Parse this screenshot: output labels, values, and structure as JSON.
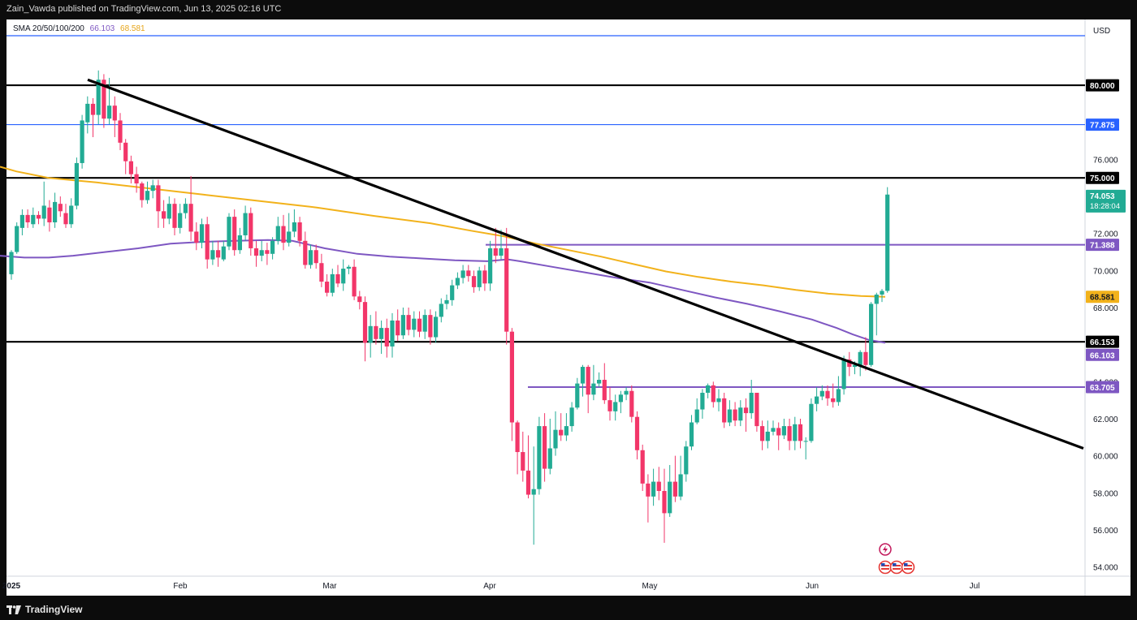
{
  "header": {
    "publish_line": "Zain_Vawda published on TradingView.com, Jun 13, 2025 02:16 UTC"
  },
  "legend": {
    "label": "SMA 20/50/100/200",
    "value_1": "66.103",
    "value_2": "68.581"
  },
  "price_axis": {
    "currency": "USD",
    "ticks": [
      "80.000",
      "76.000",
      "72.000",
      "70.000",
      "68.000",
      "64.000",
      "62.000",
      "60.000",
      "58.000",
      "56.000",
      "54.000"
    ]
  },
  "time_axis": {
    "labels": [
      "2025",
      "Feb",
      "Mar",
      "Apr",
      "May",
      "Jun",
      "Jul"
    ]
  },
  "footer": {
    "brand": "TradingView"
  },
  "colors": {
    "up": "#22ab94",
    "down": "#f23669",
    "sma_purple": "#7e57c2",
    "sma_yellow": "#f2b21b",
    "blue_line": "#2962ff",
    "black_line": "#000000"
  },
  "chart_data": {
    "type": "candlestick",
    "symbol_price_label": "74.053",
    "countdown": "18:28:04",
    "y_range": [
      53.5,
      82.5
    ],
    "horizontal_levels": [
      {
        "value": 80.0,
        "label": "80.000",
        "color": "#000000"
      },
      {
        "value": 77.875,
        "label": "77.875",
        "color": "#2962ff"
      },
      {
        "value": 75.0,
        "label": "75.000",
        "color": "#000000"
      },
      {
        "value": 71.388,
        "label": "71.388",
        "color": "#7e57c2"
      },
      {
        "value": 66.153,
        "label": "66.153",
        "color": "#000000"
      },
      {
        "value": 63.705,
        "label": "63.705",
        "color": "#7e57c2"
      }
    ],
    "sma_labels": [
      {
        "value": 68.581,
        "label": "68.581",
        "color": "#f2b21b"
      },
      {
        "value": 66.103,
        "label": "66.103",
        "color": "#7e57c2"
      }
    ],
    "trendline": {
      "start": [
        80.3,
        "Jan 14"
      ],
      "end": [
        60.4,
        "Jul 12"
      ]
    },
    "candles": [
      [
        69.8,
        71.0,
        69.5,
        71.1
      ],
      [
        71.0,
        72.4,
        70.9,
        72.6
      ],
      [
        72.3,
        73.0,
        71.9,
        73.3
      ],
      [
        73.0,
        72.6,
        72.3,
        73.3
      ],
      [
        72.5,
        73.0,
        72.3,
        73.4
      ],
      [
        73.0,
        72.8,
        72.5,
        73.2
      ],
      [
        72.8,
        73.5,
        72.4,
        74.8
      ],
      [
        73.4,
        72.6,
        72.1,
        73.8
      ],
      [
        72.6,
        73.7,
        72.3,
        74.2
      ],
      [
        73.6,
        73.2,
        72.9,
        74.0
      ],
      [
        73.1,
        72.5,
        72.3,
        73.6
      ],
      [
        72.5,
        73.5,
        72.3,
        73.9
      ],
      [
        73.5,
        75.8,
        73.3,
        76.1
      ],
      [
        75.8,
        78.1,
        75.5,
        78.4
      ],
      [
        78.0,
        79.0,
        77.4,
        79.4
      ],
      [
        79.0,
        78.4,
        77.2,
        79.3
      ],
      [
        78.4,
        80.3,
        77.9,
        80.8
      ],
      [
        80.3,
        78.2,
        77.7,
        80.6
      ],
      [
        78.2,
        78.9,
        77.9,
        80.4
      ],
      [
        78.9,
        78.1,
        77.2,
        79.4
      ],
      [
        78.1,
        76.9,
        76.5,
        78.5
      ],
      [
        76.9,
        75.9,
        75.2,
        77.1
      ],
      [
        75.9,
        75.2,
        74.7,
        76.2
      ],
      [
        75.2,
        74.7,
        74.2,
        75.6
      ],
      [
        74.7,
        73.8,
        73.4,
        74.8
      ],
      [
        73.8,
        74.3,
        73.6,
        74.8
      ],
      [
        74.3,
        74.6,
        73.9,
        74.9
      ],
      [
        74.6,
        73.2,
        72.3,
        74.9
      ],
      [
        73.2,
        72.8,
        72.3,
        73.8
      ],
      [
        72.8,
        73.6,
        72.5,
        74.0
      ],
      [
        73.6,
        72.3,
        71.9,
        73.9
      ],
      [
        72.3,
        73.1,
        72.0,
        73.6
      ],
      [
        73.1,
        73.6,
        72.8,
        73.9
      ],
      [
        73.6,
        72.1,
        71.6,
        75.1
      ],
      [
        72.1,
        71.5,
        71.1,
        72.6
      ],
      [
        71.5,
        72.5,
        71.2,
        72.8
      ],
      [
        72.5,
        70.6,
        70.1,
        72.9
      ],
      [
        70.6,
        71.1,
        70.3,
        71.6
      ],
      [
        71.1,
        70.7,
        70.2,
        71.6
      ],
      [
        70.6,
        71.3,
        70.5,
        71.6
      ],
      [
        71.3,
        72.9,
        71.1,
        73.1
      ],
      [
        72.9,
        71.1,
        70.8,
        73.3
      ],
      [
        71.1,
        71.9,
        70.9,
        72.3
      ],
      [
        71.9,
        73.1,
        71.6,
        73.5
      ],
      [
        73.1,
        71.2,
        70.8,
        73.4
      ],
      [
        71.2,
        70.8,
        70.2,
        71.6
      ],
      [
        70.8,
        71.1,
        70.5,
        71.6
      ],
      [
        71.1,
        70.9,
        70.3,
        71.5
      ],
      [
        70.9,
        71.6,
        70.6,
        71.8
      ],
      [
        71.6,
        72.4,
        71.4,
        72.9
      ],
      [
        72.4,
        71.5,
        71.1,
        73.0
      ],
      [
        71.5,
        72.1,
        71.3,
        73.1
      ],
      [
        72.1,
        72.6,
        71.8,
        73.3
      ],
      [
        72.6,
        71.6,
        71.3,
        72.9
      ],
      [
        71.6,
        70.3,
        70.1,
        72.1
      ],
      [
        70.3,
        71.1,
        70.1,
        71.4
      ],
      [
        71.1,
        70.4,
        70.1,
        71.4
      ],
      [
        70.4,
        69.4,
        69.1,
        70.9
      ],
      [
        69.4,
        68.8,
        68.6,
        69.8
      ],
      [
        68.8,
        69.8,
        68.6,
        70.1
      ],
      [
        69.8,
        69.3,
        69.1,
        70.3
      ],
      [
        69.3,
        70.1,
        68.9,
        70.6
      ],
      [
        70.1,
        70.2,
        69.8,
        70.3
      ],
      [
        70.2,
        68.6,
        68.4,
        70.6
      ],
      [
        68.6,
        68.3,
        67.9,
        68.9
      ],
      [
        68.3,
        66.1,
        65.1,
        68.6
      ],
      [
        66.1,
        67.0,
        65.3,
        67.6
      ],
      [
        67.0,
        66.3,
        66.0,
        67.8
      ],
      [
        66.3,
        66.9,
        65.5,
        67.3
      ],
      [
        66.9,
        65.9,
        65.3,
        67.4
      ],
      [
        65.9,
        67.3,
        65.3,
        67.7
      ],
      [
        67.3,
        66.5,
        66.2,
        67.9
      ],
      [
        66.5,
        67.6,
        66.3,
        68.0
      ],
      [
        67.6,
        66.8,
        66.5,
        68.0
      ],
      [
        66.8,
        67.4,
        66.4,
        67.8
      ],
      [
        67.4,
        66.7,
        66.4,
        67.8
      ],
      [
        66.7,
        67.6,
        66.3,
        67.9
      ],
      [
        67.6,
        66.4,
        66.0,
        67.9
      ],
      [
        66.4,
        67.5,
        66.1,
        67.8
      ],
      [
        67.5,
        68.2,
        67.2,
        68.5
      ],
      [
        68.2,
        68.4,
        67.9,
        68.7
      ],
      [
        68.4,
        69.2,
        68.1,
        69.5
      ],
      [
        69.2,
        69.6,
        69.0,
        69.9
      ],
      [
        69.6,
        70.0,
        69.3,
        70.3
      ],
      [
        70.0,
        69.7,
        69.4,
        70.3
      ],
      [
        69.7,
        69.1,
        68.8,
        70.0
      ],
      [
        69.1,
        70.0,
        68.9,
        70.2
      ],
      [
        70.0,
        69.3,
        68.9,
        70.3
      ],
      [
        69.3,
        71.2,
        68.9,
        71.6
      ],
      [
        71.2,
        70.8,
        70.4,
        72.3
      ],
      [
        70.8,
        71.2,
        70.6,
        72.2
      ],
      [
        71.2,
        66.7,
        66.0,
        72.3
      ],
      [
        66.7,
        61.8,
        60.8,
        66.9
      ],
      [
        61.8,
        60.2,
        59.0,
        61.9
      ],
      [
        60.2,
        59.2,
        58.6,
        61.3
      ],
      [
        59.2,
        57.9,
        57.7,
        61.1
      ],
      [
        57.9,
        58.2,
        55.2,
        60.5
      ],
      [
        58.2,
        61.6,
        57.9,
        62.1
      ],
      [
        61.6,
        59.3,
        58.6,
        62.3
      ],
      [
        59.3,
        60.4,
        59.0,
        62.0
      ],
      [
        60.4,
        61.4,
        60.0,
        62.4
      ],
      [
        61.4,
        61.1,
        60.8,
        62.3
      ],
      [
        61.1,
        61.6,
        60.8,
        62.3
      ],
      [
        61.6,
        62.6,
        61.3,
        62.9
      ],
      [
        62.6,
        63.9,
        62.5,
        64.2
      ],
      [
        63.9,
        64.8,
        63.2,
        64.9
      ],
      [
        64.8,
        63.3,
        62.3,
        64.9
      ],
      [
        63.3,
        63.9,
        63.0,
        64.9
      ],
      [
        63.9,
        64.1,
        63.7,
        64.5
      ],
      [
        64.1,
        63.0,
        62.8,
        65.0
      ],
      [
        63.0,
        62.4,
        61.9,
        63.7
      ],
      [
        62.4,
        62.9,
        61.9,
        63.3
      ],
      [
        62.9,
        63.3,
        62.3,
        63.5
      ],
      [
        63.3,
        63.5,
        63.0,
        63.7
      ],
      [
        63.5,
        62.1,
        61.8,
        63.8
      ],
      [
        62.1,
        60.3,
        59.8,
        62.4
      ],
      [
        60.3,
        58.5,
        58.1,
        60.6
      ],
      [
        58.5,
        57.8,
        56.4,
        59.0
      ],
      [
        57.8,
        58.6,
        57.3,
        59.3
      ],
      [
        58.6,
        58.1,
        57.6,
        59.4
      ],
      [
        58.1,
        56.9,
        55.3,
        59.3
      ],
      [
        56.9,
        58.6,
        56.7,
        59.5
      ],
      [
        58.6,
        57.8,
        57.5,
        60.0
      ],
      [
        57.8,
        59.0,
        57.6,
        60.0
      ],
      [
        59.0,
        60.5,
        58.6,
        60.8
      ],
      [
        60.5,
        61.8,
        60.3,
        62.2
      ],
      [
        61.8,
        62.5,
        61.7,
        63.1
      ],
      [
        62.5,
        63.4,
        62.0,
        63.6
      ],
      [
        63.4,
        63.8,
        63.1,
        63.9
      ],
      [
        63.8,
        62.9,
        62.6,
        64.0
      ],
      [
        62.9,
        63.1,
        62.4,
        63.6
      ],
      [
        63.1,
        61.8,
        61.5,
        63.4
      ],
      [
        61.8,
        62.5,
        61.6,
        63.0
      ],
      [
        62.5,
        61.9,
        61.6,
        62.9
      ],
      [
        61.9,
        62.6,
        61.6,
        63.0
      ],
      [
        62.6,
        62.3,
        61.3,
        63.1
      ],
      [
        62.3,
        63.4,
        62.0,
        64.1
      ],
      [
        63.4,
        61.6,
        61.3,
        63.4
      ],
      [
        61.6,
        60.8,
        60.3,
        61.9
      ],
      [
        60.8,
        61.3,
        60.4,
        61.9
      ],
      [
        61.3,
        61.5,
        61.1,
        61.9
      ],
      [
        61.5,
        61.1,
        60.3,
        61.8
      ],
      [
        61.1,
        61.6,
        60.9,
        62.0
      ],
      [
        61.6,
        60.8,
        60.3,
        62.0
      ],
      [
        60.8,
        61.7,
        60.3,
        62.1
      ],
      [
        61.7,
        60.8,
        60.4,
        62.0
      ],
      [
        60.8,
        60.8,
        59.8,
        61.0
      ],
      [
        60.8,
        62.8,
        60.7,
        63.1
      ],
      [
        62.8,
        63.2,
        62.4,
        63.7
      ],
      [
        63.2,
        63.5,
        63.0,
        63.8
      ],
      [
        63.5,
        63.1,
        62.7,
        63.8
      ],
      [
        63.1,
        62.9,
        62.6,
        63.9
      ],
      [
        62.9,
        63.6,
        62.7,
        64.3
      ],
      [
        63.6,
        65.2,
        63.3,
        65.4
      ],
      [
        65.2,
        64.8,
        64.3,
        65.6
      ],
      [
        64.8,
        64.9,
        64.4,
        65.1
      ],
      [
        64.9,
        65.6,
        64.3,
        65.7
      ],
      [
        65.6,
        64.9,
        64.6,
        66.4
      ],
      [
        64.9,
        68.2,
        64.8,
        68.3
      ],
      [
        68.2,
        68.7,
        66.5,
        68.8
      ],
      [
        68.7,
        68.9,
        68.3,
        69.0
      ],
      [
        68.9,
        74.1,
        68.8,
        74.5
      ]
    ],
    "sma_200": [
      [
        0,
        75.6
      ],
      [
        20,
        75.35
      ],
      [
        60,
        75.0
      ],
      [
        120,
        74.75
      ],
      [
        180,
        74.45
      ],
      [
        250,
        74.1
      ],
      [
        320,
        73.75
      ],
      [
        390,
        73.4
      ],
      [
        460,
        72.95
      ],
      [
        530,
        72.55
      ],
      [
        580,
        72.15
      ],
      [
        620,
        71.85
      ],
      [
        660,
        71.45
      ],
      [
        700,
        71.1
      ],
      [
        740,
        70.75
      ],
      [
        780,
        70.35
      ],
      [
        820,
        69.95
      ],
      [
        860,
        69.65
      ],
      [
        900,
        69.4
      ],
      [
        940,
        69.2
      ],
      [
        980,
        68.95
      ],
      [
        1020,
        68.75
      ],
      [
        1060,
        68.62
      ],
      [
        1090,
        68.58
      ]
    ],
    "sma_100": [
      [
        0,
        70.8
      ],
      [
        30,
        70.7
      ],
      [
        60,
        70.7
      ],
      [
        90,
        70.8
      ],
      [
        130,
        71.0
      ],
      [
        170,
        71.2
      ],
      [
        210,
        71.45
      ],
      [
        250,
        71.55
      ],
      [
        290,
        71.6
      ],
      [
        330,
        71.65
      ],
      [
        360,
        71.6
      ],
      [
        380,
        71.4
      ],
      [
        400,
        71.2
      ],
      [
        440,
        70.9
      ],
      [
        480,
        70.75
      ],
      [
        520,
        70.65
      ],
      [
        560,
        70.55
      ],
      [
        600,
        70.5
      ],
      [
        625,
        70.6
      ],
      [
        640,
        70.5
      ],
      [
        680,
        70.2
      ],
      [
        720,
        69.9
      ],
      [
        760,
        69.6
      ],
      [
        800,
        69.35
      ],
      [
        840,
        68.95
      ],
      [
        880,
        68.55
      ],
      [
        920,
        68.2
      ],
      [
        960,
        67.8
      ],
      [
        1000,
        67.35
      ],
      [
        1030,
        66.9
      ],
      [
        1050,
        66.55
      ],
      [
        1070,
        66.25
      ],
      [
        1090,
        66.1
      ]
    ]
  }
}
